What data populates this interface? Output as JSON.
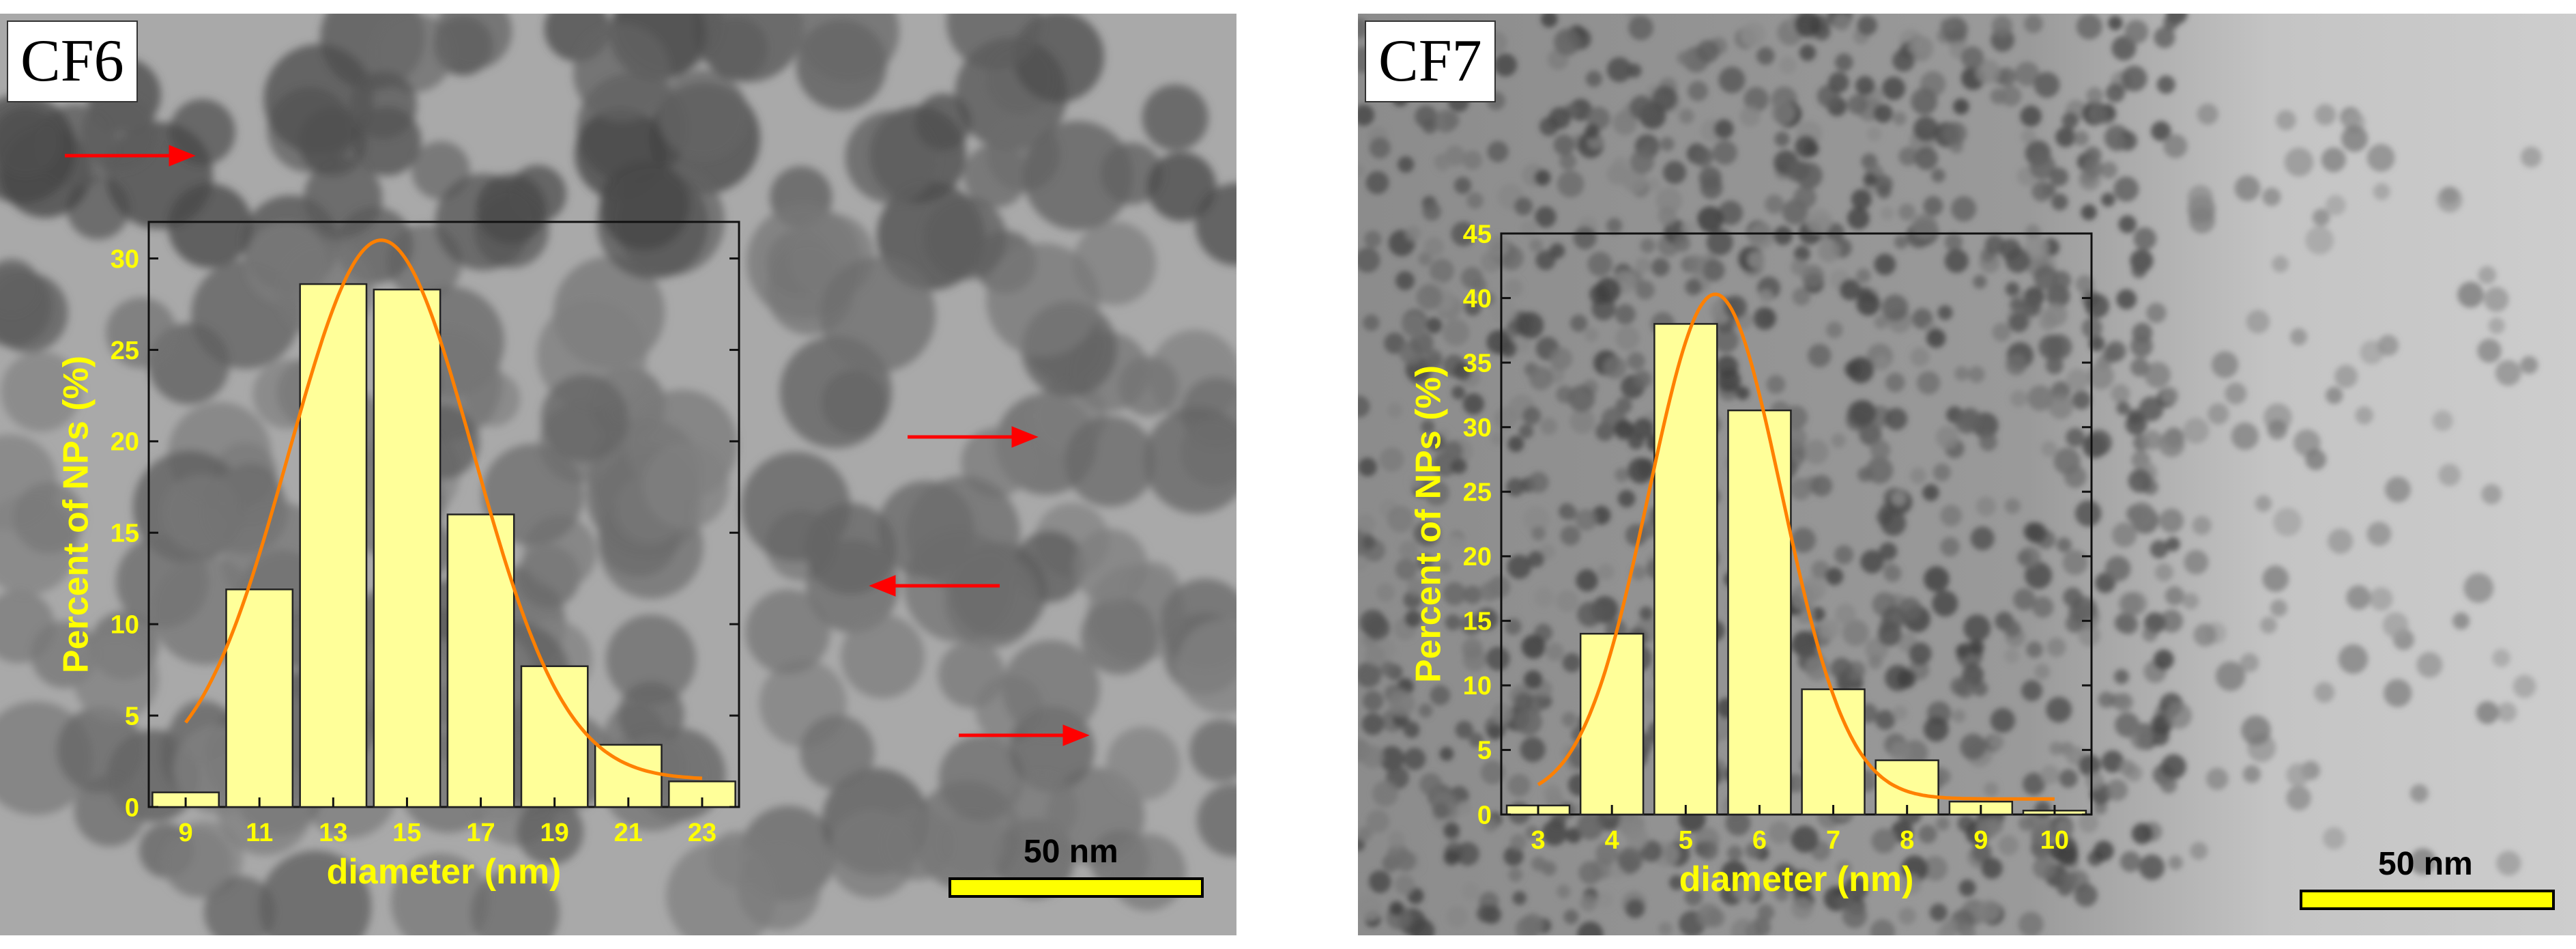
{
  "panels": [
    {
      "label": "CF6",
      "scale_bar": "50 nm",
      "chart_data": {
        "type": "bar",
        "xlabel": "diameter (nm)",
        "ylabel": "Percent of NPs (%)",
        "x": [
          9,
          11,
          13,
          15,
          17,
          19,
          21,
          23
        ],
        "values": [
          0.8,
          11.9,
          28.6,
          28.3,
          16.0,
          7.7,
          3.4,
          1.4
        ],
        "xtick_labels": [
          "9",
          "11",
          "13",
          "15",
          "17",
          "19",
          "21",
          "23"
        ],
        "yticks": [
          0,
          5,
          10,
          15,
          20,
          25,
          30
        ],
        "xlim": [
          8,
          24
        ],
        "ylim": [
          0,
          32
        ],
        "fit": {
          "type": "gaussian",
          "center": 14.3,
          "peak": 31.0,
          "sigma": 2.5,
          "baseline": 1.5
        },
        "colors": {
          "bar": "#ffff99",
          "fit": "#ff8000",
          "text": "#ffff00"
        }
      }
    },
    {
      "label": "CF7",
      "scale_bar": "50 nm",
      "chart_data": {
        "type": "bar",
        "xlabel": "diameter (nm)",
        "ylabel": "Percent of NPs (%)",
        "x": [
          3,
          4,
          5,
          6,
          7,
          8,
          9,
          10
        ],
        "values": [
          0.7,
          14.0,
          38.0,
          31.3,
          9.7,
          4.2,
          1.0,
          0.3
        ],
        "xtick_labels": [
          "3",
          "4",
          "5",
          "6",
          "7",
          "8",
          "9",
          "10"
        ],
        "yticks": [
          0,
          5,
          10,
          15,
          20,
          25,
          30,
          35,
          40,
          45
        ],
        "xlim": [
          2.5,
          10.5
        ],
        "ylim": [
          0,
          45
        ],
        "fit": {
          "type": "gaussian",
          "center": 5.4,
          "peak": 40.3,
          "sigma": 0.9,
          "baseline": 1.2
        },
        "colors": {
          "bar": "#ffff99",
          "fit": "#ff8000",
          "text": "#ffff00"
        }
      }
    }
  ],
  "annotations": {
    "arrow_color": "#ff0000",
    "scale_bar_color": "#ffff00"
  }
}
